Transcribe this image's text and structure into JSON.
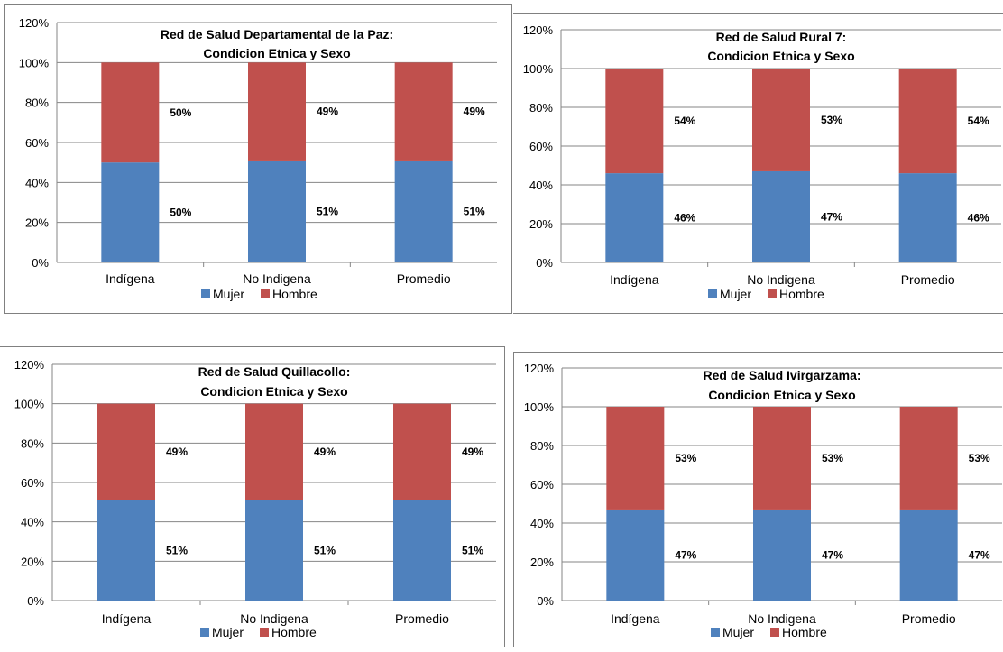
{
  "legend": [
    {
      "name": "Mujer",
      "color": "#4F81BD"
    },
    {
      "name": "Hombre",
      "color": "#C0504D"
    }
  ],
  "y_ticks": [
    "0%",
    "20%",
    "40%",
    "60%",
    "80%",
    "100%",
    "120%"
  ],
  "chart_data": [
    {
      "type": "bar",
      "stacked": true,
      "title": [
        "Red de Salud Departamental de la Paz:",
        "Condicion Etnica y Sexo"
      ],
      "categories": [
        "Indígena",
        "No Indigena",
        "Promedio"
      ],
      "series": [
        {
          "name": "Mujer",
          "values": [
            50,
            51,
            51
          ],
          "labels": [
            "50%",
            "51%",
            "51%"
          ]
        },
        {
          "name": "Hombre",
          "values": [
            50,
            49,
            49
          ],
          "labels": [
            "50%",
            "49%",
            "49%"
          ]
        }
      ],
      "ylim": [
        0,
        120
      ],
      "grid": true,
      "legend_position": "bottom"
    },
    {
      "type": "bar",
      "stacked": true,
      "title": [
        "Red de Salud Rural 7:",
        "Condicion Etnica y Sexo"
      ],
      "categories": [
        "Indígena",
        "No Indigena",
        "Promedio"
      ],
      "series": [
        {
          "name": "Mujer",
          "values": [
            46,
            47,
            46
          ],
          "labels": [
            "46%",
            "47%",
            "46%"
          ]
        },
        {
          "name": "Hombre",
          "values": [
            54,
            53,
            54
          ],
          "labels": [
            "54%",
            "53%",
            "54%"
          ]
        }
      ],
      "ylim": [
        0,
        120
      ],
      "grid": true,
      "legend_position": "bottom"
    },
    {
      "type": "bar",
      "stacked": true,
      "title": [
        "Red de Salud Quillacollo:",
        "Condicion Etnica y Sexo"
      ],
      "categories": [
        "Indígena",
        "No Indigena",
        "Promedio"
      ],
      "series": [
        {
          "name": "Mujer",
          "values": [
            51,
            51,
            51
          ],
          "labels": [
            "51%",
            "51%",
            "51%"
          ]
        },
        {
          "name": "Hombre",
          "values": [
            49,
            49,
            49
          ],
          "labels": [
            "49%",
            "49%",
            "49%"
          ]
        }
      ],
      "ylim": [
        0,
        120
      ],
      "grid": true,
      "legend_position": "bottom"
    },
    {
      "type": "bar",
      "stacked": true,
      "title": [
        "Red de Salud Ivirgarzama:",
        "Condicion Etnica y Sexo"
      ],
      "categories": [
        "Indígena",
        "No Indigena",
        "Promedio"
      ],
      "series": [
        {
          "name": "Mujer",
          "values": [
            47,
            47,
            47
          ],
          "labels": [
            "47%",
            "47%",
            "47%"
          ]
        },
        {
          "name": "Hombre",
          "values": [
            53,
            53,
            53
          ],
          "labels": [
            "53%",
            "53%",
            "53%"
          ]
        }
      ],
      "ylim": [
        0,
        120
      ],
      "grid": true,
      "legend_position": "bottom"
    }
  ]
}
